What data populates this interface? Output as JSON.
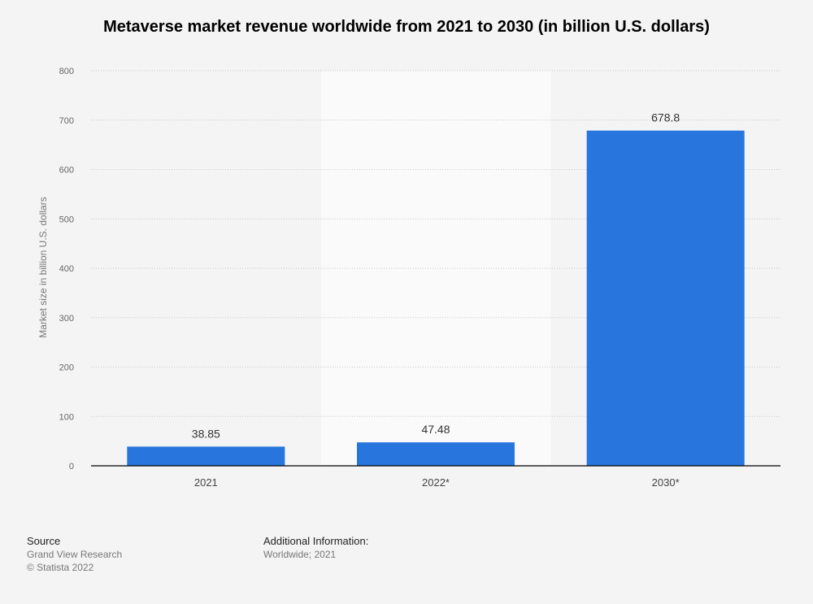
{
  "chart_data": {
    "type": "bar",
    "title": "Metaverse market revenue worldwide from 2021 to 2030 (in billion U.S. dollars)",
    "xlabel": "",
    "ylabel": "Market size in billion U.S. dollars",
    "categories": [
      "2021",
      "2022*",
      "2030*"
    ],
    "values": [
      38.85,
      47.48,
      678.8
    ],
    "value_labels": [
      "38.85",
      "47.48",
      "678.8"
    ],
    "ylim": [
      0,
      800
    ],
    "yticks": [
      0,
      100,
      200,
      300,
      400,
      500,
      600,
      700,
      800
    ],
    "grid": "horizontal dotted",
    "legend": "none",
    "highlighted_category": "2022*",
    "bar_color": "#2876dd",
    "highlight_band_color": "#fafafa",
    "gridline_color": "#c9c9c9",
    "axis_color": "#000000"
  },
  "footer": {
    "source_heading": "Source",
    "source_lines": [
      "Grand View Research",
      "© Statista 2022"
    ],
    "info_heading": "Additional Information:",
    "info_lines": [
      "Worldwide; 2021"
    ]
  }
}
